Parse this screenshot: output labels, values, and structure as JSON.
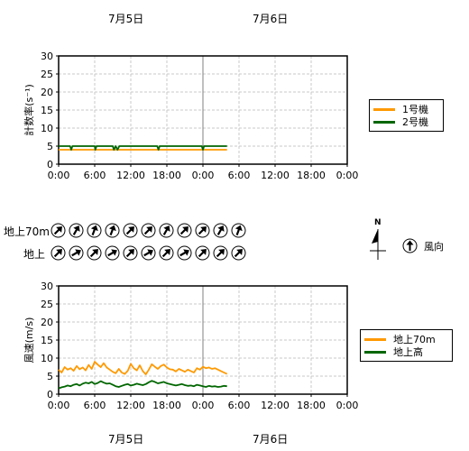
{
  "dates_top": [
    "7月5日",
    "7月6日"
  ],
  "dates_bottom": [
    "7月5日",
    "7月6日"
  ],
  "colors": {
    "unit1": "#ff9900",
    "unit2": "#006600",
    "grid": "#c8c8c8",
    "midnight": "#808080"
  },
  "wind": {
    "row_labels": [
      "地上70m",
      "地上"
    ],
    "legend_label": "風向",
    "north_label": "N",
    "directions_70m_deg": [
      225,
      210,
      200,
      200,
      225,
      225,
      210,
      225,
      225,
      210,
      200
    ],
    "directions_ground_deg": [
      225,
      240,
      225,
      240,
      225,
      240,
      225,
      240,
      225,
      225,
      225
    ]
  },
  "chart_data": [
    {
      "type": "line",
      "ylabel": "計数率(s⁻¹)",
      "ylim": [
        0,
        30
      ],
      "yticks": [
        "0",
        "5",
        "10",
        "15",
        "20",
        "25",
        "30"
      ],
      "xticks": [
        "0:00",
        "6:00",
        "12:00",
        "18:00",
        "0:00",
        "6:00",
        "12:00",
        "18:00",
        "0:00"
      ],
      "x_range_hours": [
        0,
        48
      ],
      "grid": true,
      "legend_position": "right",
      "series": [
        {
          "name": "1号機",
          "color": "#ff9900",
          "x": [
            0,
            4,
            8,
            12,
            16,
            20,
            24,
            28
          ],
          "y": [
            4.0,
            4.0,
            4.0,
            4.0,
            4.0,
            4.0,
            4.0,
            4.0
          ]
        },
        {
          "name": "2号機",
          "color": "#006600",
          "x": [
            0,
            1.9,
            2.1,
            2.3,
            6,
            6.1,
            6.3,
            9,
            9.2,
            9.5,
            9.8,
            10.1,
            16.4,
            16.6,
            16.8,
            23.8,
            24,
            24.2,
            28
          ],
          "y": [
            5.0,
            5.0,
            4.0,
            5.0,
            5.0,
            4.0,
            5.0,
            5.0,
            4.0,
            5.0,
            4.0,
            5.0,
            5.0,
            4.0,
            5.0,
            5.0,
            4.0,
            5.0,
            5.0
          ]
        }
      ]
    },
    {
      "type": "line",
      "ylabel": "風速(m/s)",
      "ylim": [
        0,
        30
      ],
      "yticks": [
        "0",
        "5",
        "10",
        "15",
        "20",
        "25",
        "30"
      ],
      "xticks": [
        "0:00",
        "6:00",
        "12:00",
        "18:00",
        "0:00",
        "6:00",
        "12:00",
        "18:00",
        "0:00"
      ],
      "x_range_hours": [
        0,
        48
      ],
      "grid": true,
      "legend_position": "right",
      "series": [
        {
          "name": "地上70m",
          "color": "#ff9900",
          "x": [
            0,
            0.5,
            1,
            1.5,
            2,
            2.5,
            3,
            3.5,
            4,
            4.5,
            5,
            5.5,
            6,
            6.5,
            7,
            7.5,
            8,
            8.5,
            9,
            9.5,
            10,
            10.5,
            11,
            11.5,
            12,
            12.5,
            13,
            13.5,
            14,
            14.5,
            15,
            15.5,
            16,
            16.5,
            17,
            17.5,
            18,
            18.5,
            19,
            19.5,
            20,
            20.5,
            21,
            21.5,
            22,
            22.5,
            23,
            23.5,
            24,
            24.5,
            25,
            25.5,
            26,
            26.5,
            27,
            27.5,
            28
          ],
          "y": [
            6.8,
            6.0,
            7.5,
            6.8,
            7.2,
            6.5,
            7.8,
            6.9,
            7.4,
            6.6,
            8.1,
            7.0,
            9.0,
            8.2,
            7.5,
            8.6,
            7.4,
            6.8,
            6.2,
            5.8,
            7.0,
            6.0,
            5.6,
            6.5,
            8.4,
            7.2,
            6.6,
            8.0,
            6.4,
            5.5,
            6.8,
            8.3,
            7.6,
            7.0,
            7.8,
            8.2,
            7.4,
            6.9,
            6.8,
            6.3,
            7.0,
            6.6,
            6.2,
            6.8,
            6.4,
            6.0,
            7.2,
            6.8,
            7.6,
            7.2,
            7.4,
            7.0,
            7.2,
            6.8,
            6.4,
            6.0,
            5.6
          ]
        },
        {
          "name": "地上高",
          "color": "#006600",
          "x": [
            0,
            0.5,
            1,
            1.5,
            2,
            2.5,
            3,
            3.5,
            4,
            4.5,
            5,
            5.5,
            6,
            6.5,
            7,
            7.5,
            8,
            8.5,
            9,
            9.5,
            10,
            10.5,
            11,
            11.5,
            12,
            12.5,
            13,
            13.5,
            14,
            14.5,
            15,
            15.5,
            16,
            16.5,
            17,
            17.5,
            18,
            18.5,
            19,
            19.5,
            20,
            20.5,
            21,
            21.5,
            22,
            22.5,
            23,
            23.5,
            24,
            24.5,
            25,
            25.5,
            26,
            26.5,
            27,
            27.5,
            28
          ],
          "y": [
            1.6,
            1.9,
            2.1,
            2.4,
            2.2,
            2.6,
            2.8,
            2.4,
            2.9,
            3.2,
            3.0,
            3.4,
            2.8,
            3.1,
            3.6,
            3.2,
            2.9,
            3.0,
            2.6,
            2.2,
            2.0,
            2.3,
            2.6,
            2.8,
            2.4,
            2.6,
            2.9,
            2.7,
            2.5,
            2.8,
            3.3,
            3.7,
            3.4,
            3.0,
            3.2,
            3.4,
            3.0,
            2.8,
            2.6,
            2.4,
            2.6,
            2.8,
            2.5,
            2.3,
            2.4,
            2.2,
            2.6,
            2.4,
            2.2,
            2.0,
            2.3,
            2.1,
            2.2,
            2.0,
            2.1,
            2.3,
            2.2
          ]
        }
      ]
    }
  ]
}
